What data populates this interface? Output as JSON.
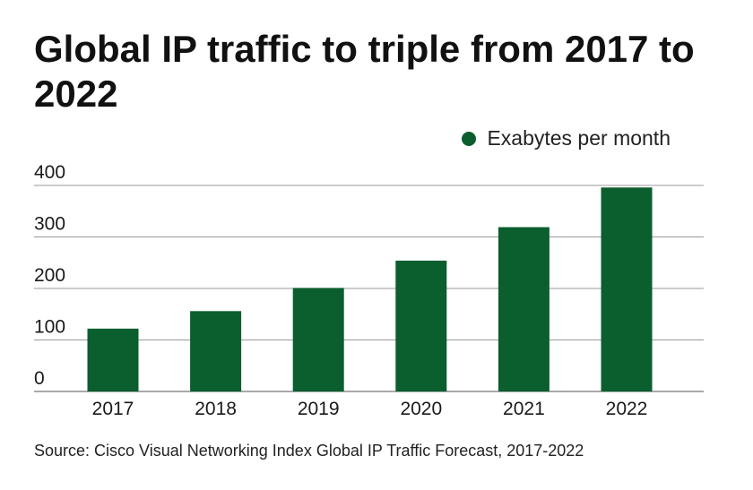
{
  "title": "Global IP traffic to triple from 2017 to 2022",
  "source": "Source: Cisco Visual Networking Index Global IP Traffic Forecast, 2017-2022",
  "colors": {
    "bar": "#0b5e2e",
    "grid": "#777777",
    "text": "#1a1a1a"
  },
  "chart_data": {
    "type": "bar",
    "categories": [
      "2017",
      "2018",
      "2019",
      "2020",
      "2021",
      "2022"
    ],
    "series": [
      {
        "name": "Exabytes per month",
        "values": [
          122,
          156,
          201,
          254,
          319,
          396
        ]
      }
    ],
    "yticks": [
      0,
      100,
      200,
      300,
      400
    ],
    "ylim": [
      0,
      400
    ],
    "grid": true,
    "legend": "top-right",
    "title": "Global IP traffic to triple from 2017 to 2022",
    "xlabel": "",
    "ylabel": ""
  }
}
